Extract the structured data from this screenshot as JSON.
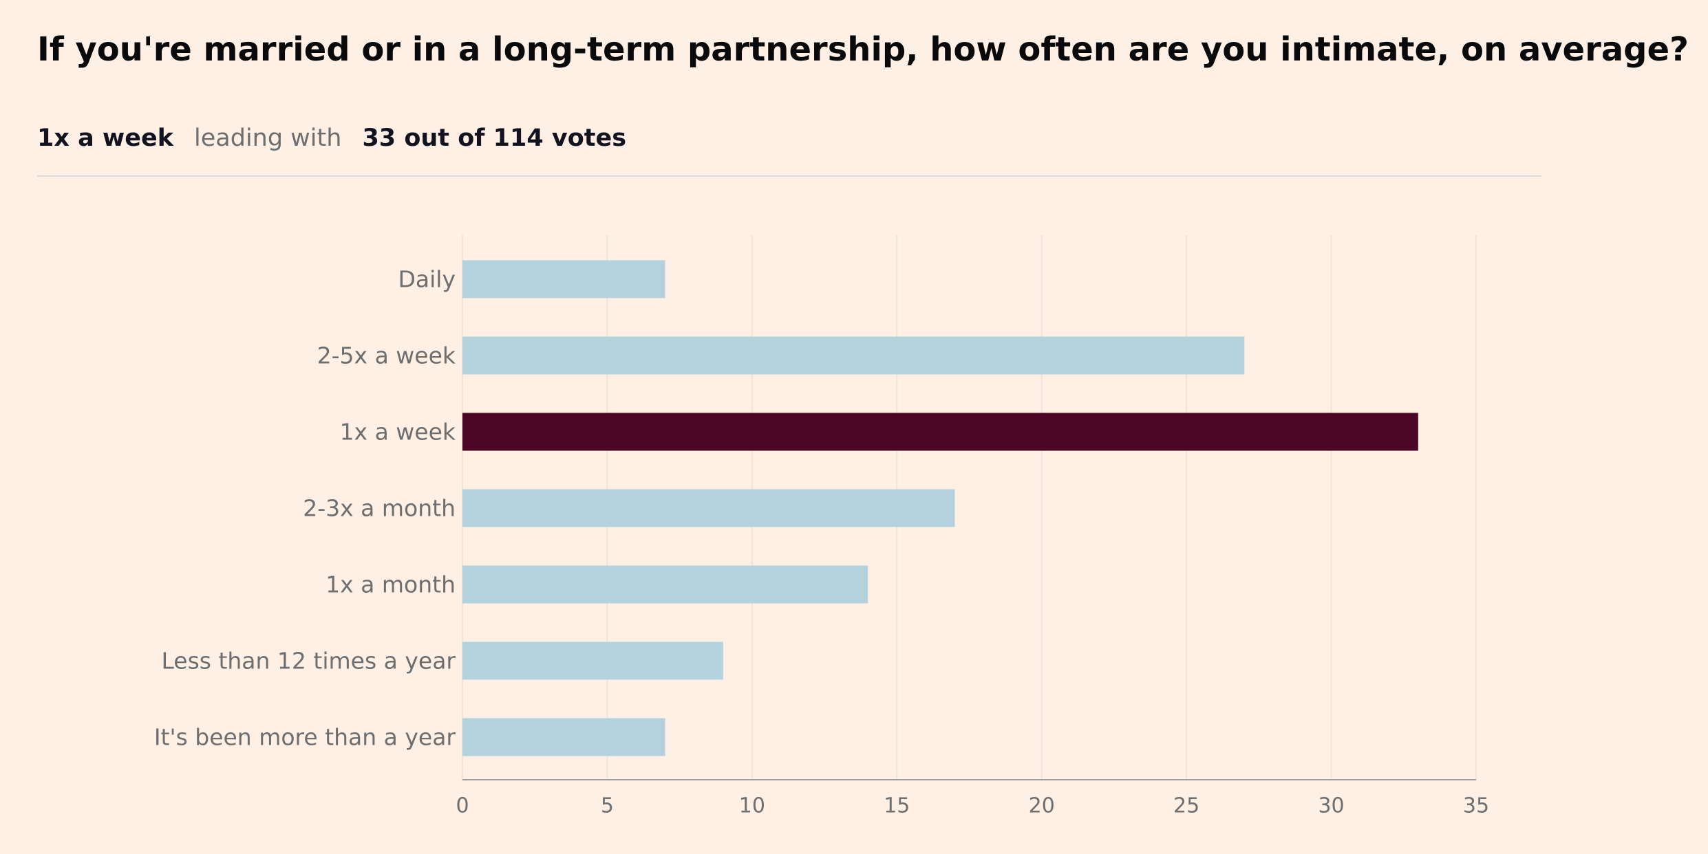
{
  "title": "If you're married or in a long-term partnership, how often are you intimate, on average?",
  "summary": {
    "leader": "1x a week",
    "connector": "leading with",
    "votes": "33 out of 114 votes"
  },
  "colors": {
    "background": "#fff0e6",
    "bar": "#b4d2dd",
    "highlight": "#4c0626",
    "label": "#6e6e6e",
    "grid": "#f0e4da",
    "axis": "#a0a0a0"
  },
  "chart_data": {
    "type": "bar",
    "orientation": "horizontal",
    "categories": [
      "Daily",
      "2-5x a week",
      "1x a week",
      "2-3x a month",
      "1x a month",
      "Less than 12 times a year",
      "It's been more than a year"
    ],
    "values": [
      7,
      27,
      33,
      17,
      14,
      9,
      7
    ],
    "highlight": "1x a week",
    "xlim": [
      0,
      35
    ],
    "xticks": [
      0,
      5,
      10,
      15,
      20,
      25,
      30,
      35
    ],
    "grid": true,
    "legend": "none"
  }
}
